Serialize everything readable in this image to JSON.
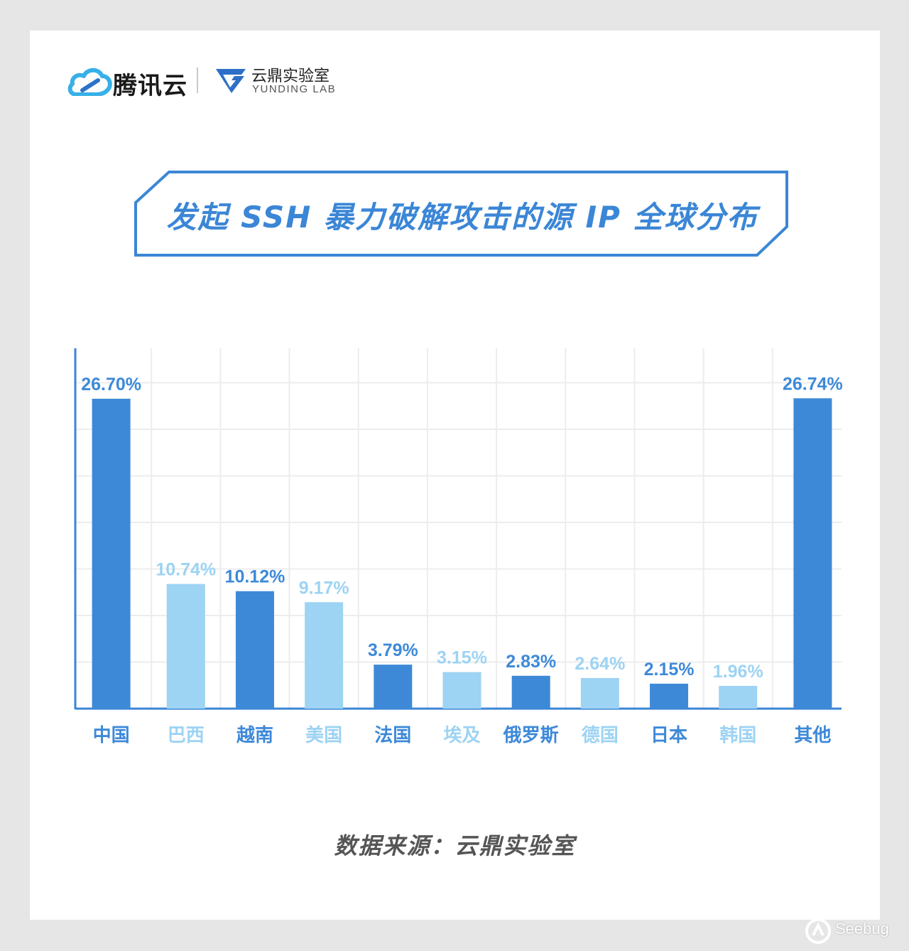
{
  "header": {
    "brand_name": "腾讯云",
    "lab_name_cn": "云鼎实验室",
    "lab_name_en": "YUNDING LAB"
  },
  "colors": {
    "dark_bar": "#3d89d8",
    "light_bar": "#9dd3f3",
    "title": "#3b86d6",
    "frame": "#3b86d6"
  },
  "chart_data": {
    "type": "bar",
    "title": "发起 SSH 暴力破解攻击的源 IP 全球分布",
    "categories": [
      "中国",
      "巴西",
      "越南",
      "美国",
      "法国",
      "埃及",
      "俄罗斯",
      "德国",
      "日本",
      "韩国",
      "其他"
    ],
    "values": [
      26.7,
      10.74,
      10.12,
      9.17,
      3.79,
      3.15,
      2.83,
      2.64,
      2.15,
      1.96,
      26.74
    ],
    "value_labels": [
      "26.70%",
      "10.74%",
      "10.12%",
      "9.17%",
      "3.79%",
      "3.15%",
      "2.83%",
      "2.64%",
      "2.15%",
      "1.96%",
      "26.74%"
    ],
    "bar_color_pattern": [
      "dark",
      "light",
      "dark",
      "light",
      "dark",
      "light",
      "dark",
      "light",
      "dark",
      "light",
      "dark"
    ],
    "unit": "%",
    "ylim": [
      0,
      30
    ],
    "grid": true,
    "legend": "none"
  },
  "footer": {
    "source": "数据来源：云鼎实验室"
  },
  "watermark": "Seebug"
}
